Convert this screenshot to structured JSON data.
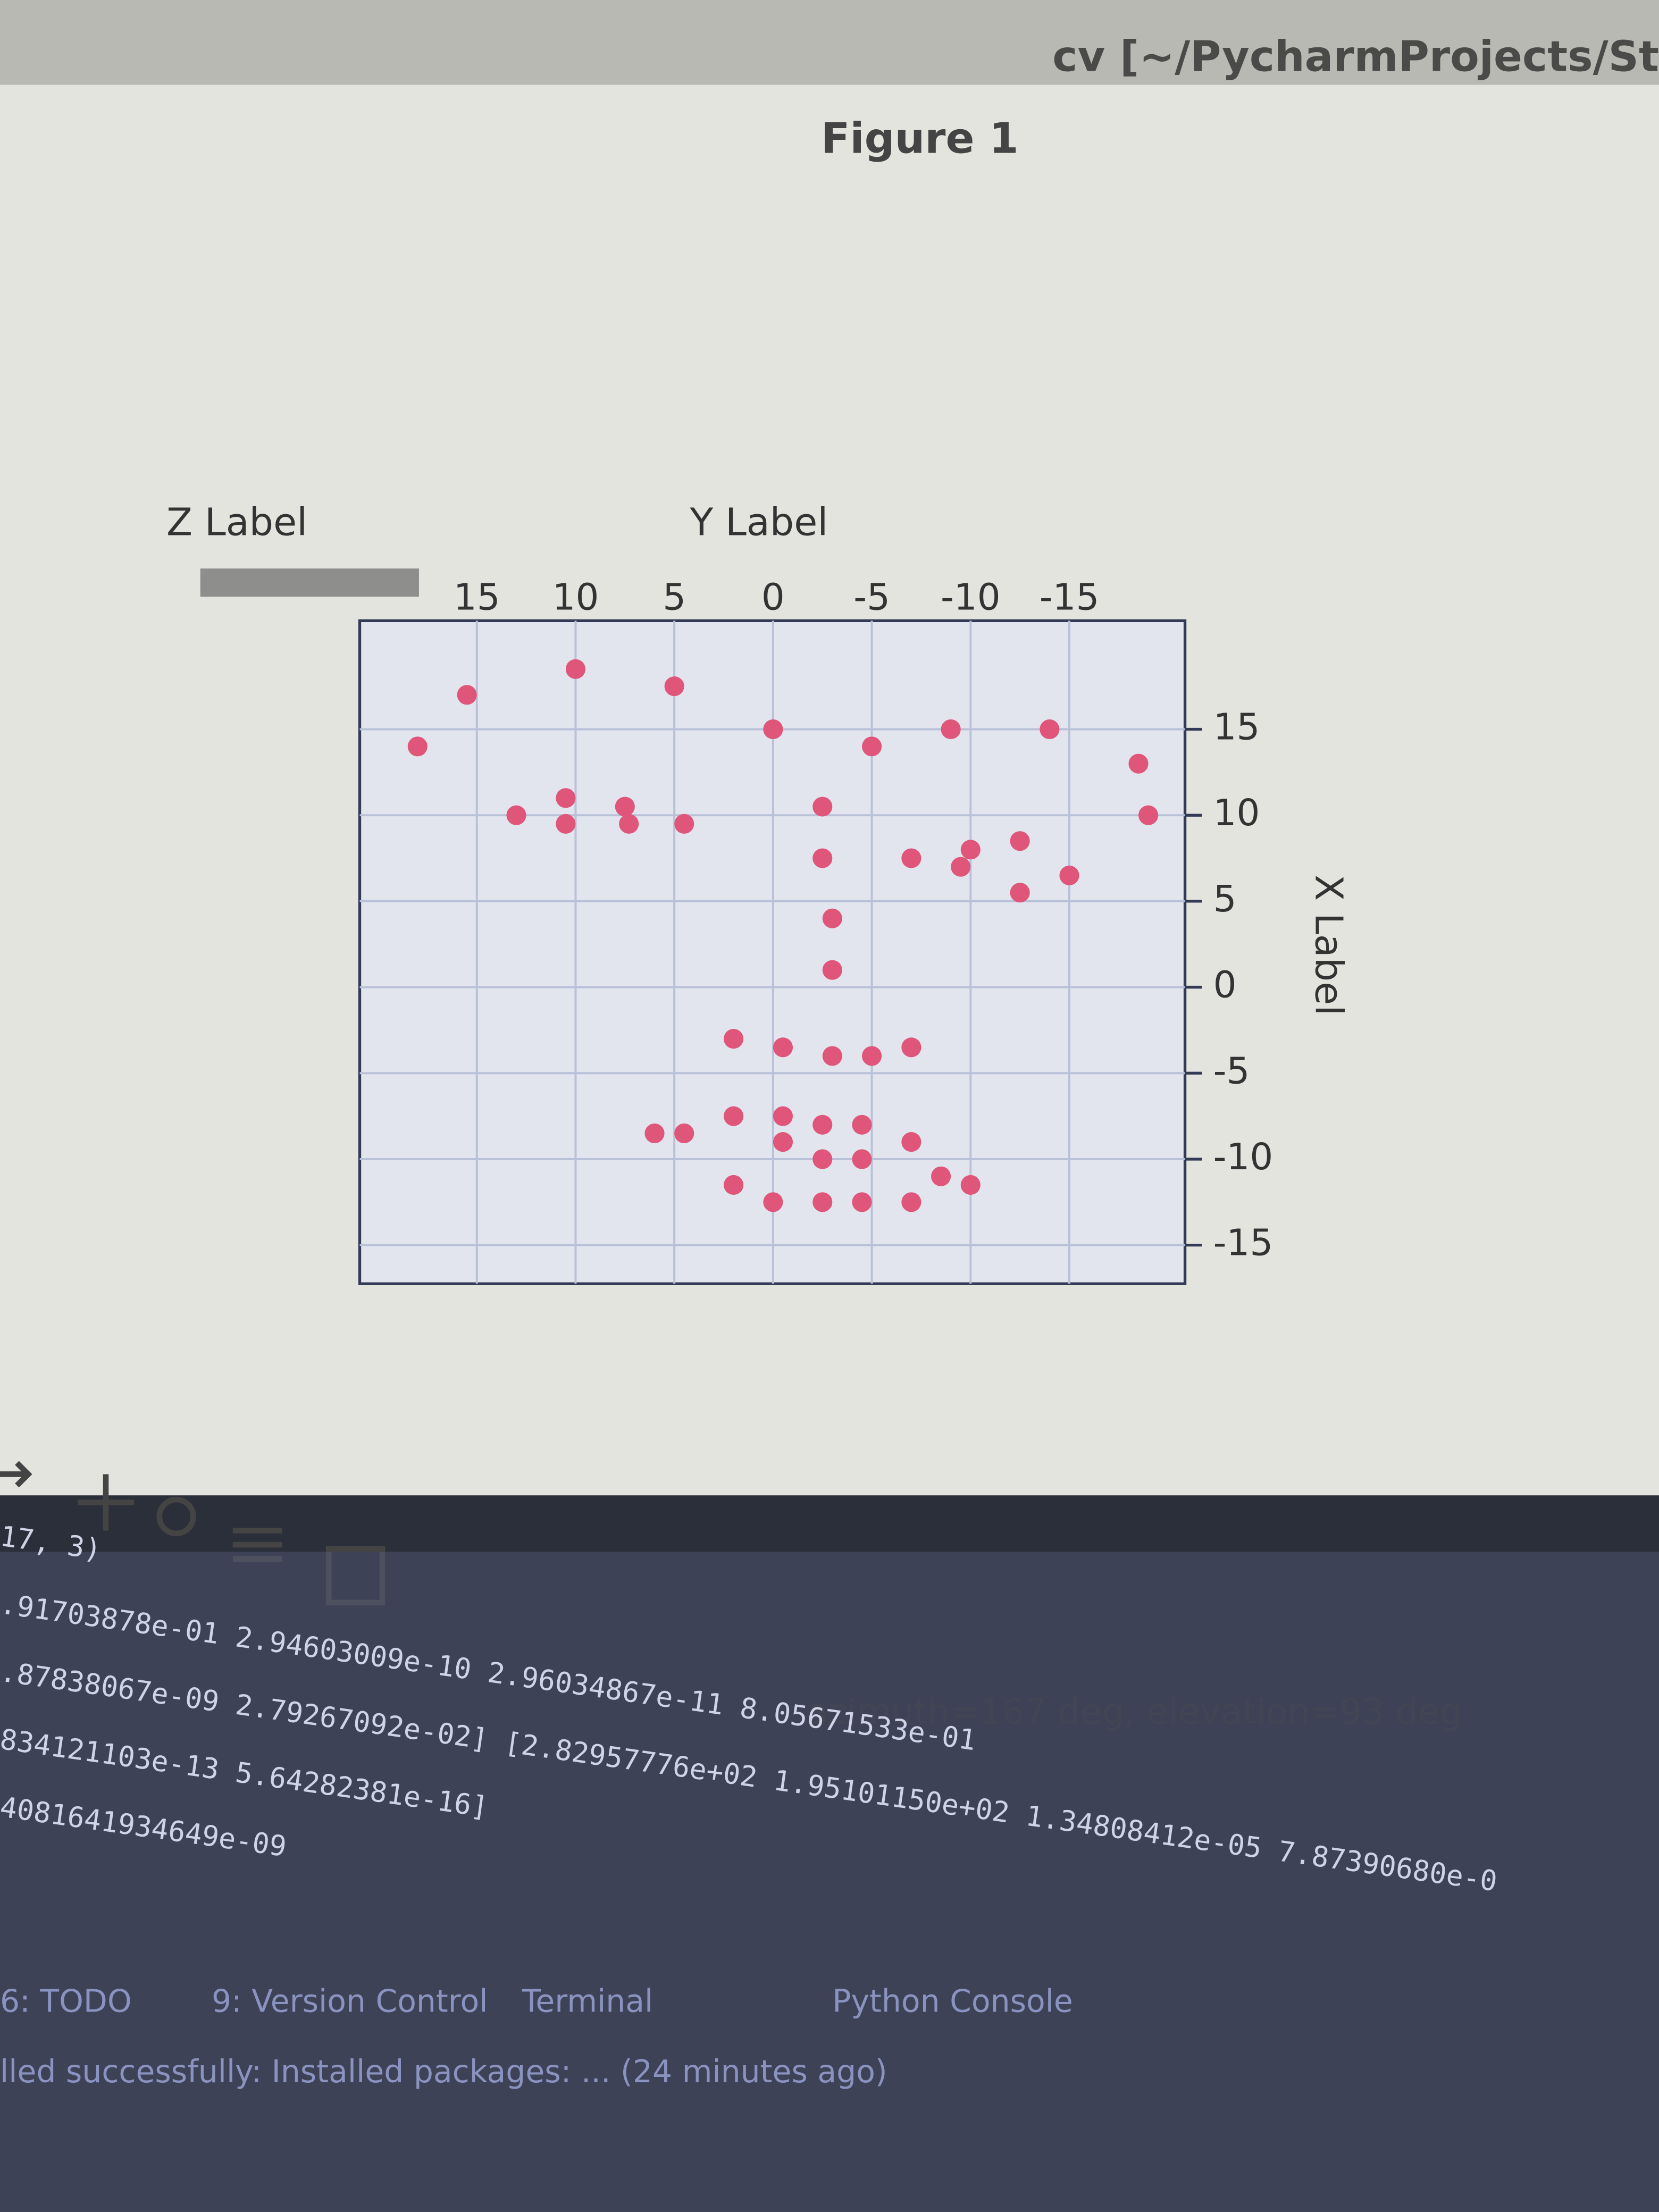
{
  "window_title": "cv [~/PycharmProjects/St",
  "figure_title": "Figure 1",
  "chart_data": {
    "type": "scatter",
    "x_label": "Y Label",
    "y_label": "X Label",
    "z_label": "Z Label",
    "x": [
      15.5,
      10,
      5,
      18,
      0,
      -5,
      -9,
      -14,
      -18.5,
      -19,
      13,
      10.5,
      10.5,
      7.5,
      7.3,
      4.5,
      -2.5,
      -2.5,
      -7,
      -10,
      -9.5,
      -12.5,
      -12.5,
      -15,
      -3,
      -3,
      2,
      -0.5,
      -3,
      -5,
      -7,
      2,
      -0.5,
      -2.5,
      -4.5,
      6,
      4.5,
      -0.5,
      -2.5,
      -4.5,
      -7,
      2,
      -8.5,
      -10,
      0,
      -2.5,
      -4.5,
      -7
    ],
    "values": [
      17,
      18.5,
      17.5,
      14,
      15,
      14,
      15,
      15,
      13,
      10,
      10,
      11,
      9.5,
      10.5,
      9.5,
      9.5,
      10.5,
      7.5,
      7.5,
      8,
      7,
      8.5,
      5.5,
      6.5,
      4,
      1,
      -3,
      -3.5,
      -4,
      -4,
      -3.5,
      -7.5,
      -7.5,
      -8,
      -8,
      -8.5,
      -8.5,
      -9,
      -10,
      -10,
      -9,
      -11.5,
      -11,
      -11.5,
      -12.5,
      -12.5,
      -12.5,
      -12.5
    ],
    "color": "#e0557a",
    "xlim": [
      20,
      -20
    ],
    "ylim": [
      -17,
      20
    ],
    "xticks": [
      15,
      10,
      5,
      0,
      -5,
      -10,
      -15
    ],
    "yticks": [
      15,
      10,
      5,
      0,
      -5,
      -10,
      -15
    ],
    "grid": true
  },
  "status": "azimuth=167 deg, elevation=93 deg",
  "console": [
    "17, 3)",
    ".91703878e-01 2.94603009e-10 2.96034867e-11 8.05671533e-01",
    ".87838067e-09 2.79267092e-02] [2.82957776e+02 1.95101150e+02 1.34808412e-05 7.87390680e-0",
    "834121103e-13 5.64282381e-16]",
    "4081641934649e-09"
  ],
  "tabs": [
    "6: TODO",
    "9: Version Control",
    "Terminal",
    "Python Console"
  ],
  "event_log": "lled successfully: Installed packages: ... (24 minutes ago)"
}
